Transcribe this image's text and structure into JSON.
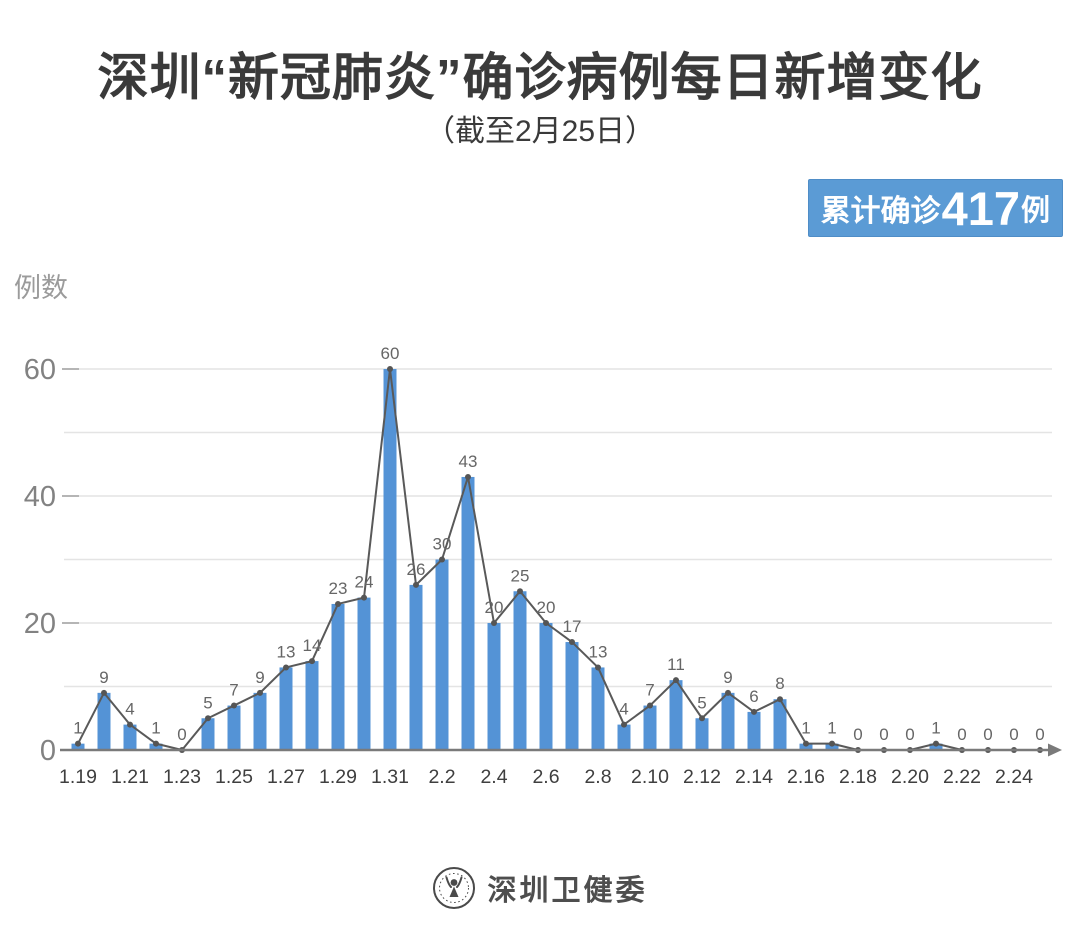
{
  "header": {
    "title": "深圳“新冠肺炎”确诊病例每日新增变化",
    "subtitle": "（截至2月25日）",
    "badge": {
      "prefix": "累计确诊",
      "value": "417",
      "suffix": "例",
      "bg_color": "#5B9BD5",
      "text_color": "#ffffff"
    }
  },
  "chart_data": {
    "type": "bar",
    "title": "深圳“新冠肺炎”确诊病例每日新增变化",
    "subtitle": "（截至2月25日）",
    "xlabel": "",
    "ylabel": "例数",
    "categories": [
      "1.19",
      "1.20",
      "1.21",
      "1.22",
      "1.23",
      "1.24",
      "1.25",
      "1.26",
      "1.27",
      "1.28",
      "1.29",
      "1.30",
      "1.31",
      "2.1",
      "2.2",
      "2.3",
      "2.4",
      "2.5",
      "2.6",
      "2.7",
      "2.8",
      "2.9",
      "2.10",
      "2.11",
      "2.12",
      "2.13",
      "2.14",
      "2.15",
      "2.16",
      "2.17",
      "2.18",
      "2.19",
      "2.20",
      "2.21",
      "2.22",
      "2.23",
      "2.24",
      "2.25"
    ],
    "values": [
      1,
      9,
      4,
      1,
      0,
      5,
      7,
      9,
      13,
      14,
      23,
      24,
      60,
      26,
      30,
      43,
      20,
      25,
      20,
      17,
      13,
      4,
      7,
      11,
      5,
      9,
      6,
      8,
      1,
      1,
      0,
      0,
      0,
      1,
      0,
      0,
      0,
      0
    ],
    "x_tick_labels_shown": [
      "1.19",
      "1.21",
      "1.23",
      "1.25",
      "1.27",
      "1.29",
      "1.31",
      "2.2",
      "2.4",
      "2.6",
      "2.8",
      "2.10",
      "2.12",
      "2.14",
      "2.16",
      "2.18",
      "2.20",
      "2.22",
      "2.24"
    ],
    "cumulative_total": 417,
    "overlay_line": true,
    "data_labels": true,
    "ylim": [
      0,
      65
    ],
    "yticks": [
      0,
      20,
      40,
      60
    ],
    "gridline_step": 10,
    "grid": true,
    "legend_position": "none",
    "colors": {
      "bar": "#5493D6",
      "line": "#595959",
      "marker": "#555555",
      "data_label": "#666666",
      "grid": "#e4e4e4",
      "tick_dash": "#b5b5b5",
      "axis": "#7a7a7a",
      "y_tick_label": "#828282",
      "x_tick_label": "#3f3f3f"
    }
  },
  "footer": {
    "logo": "shenzhen-health-commission-seal",
    "text": "深圳卫健委"
  }
}
